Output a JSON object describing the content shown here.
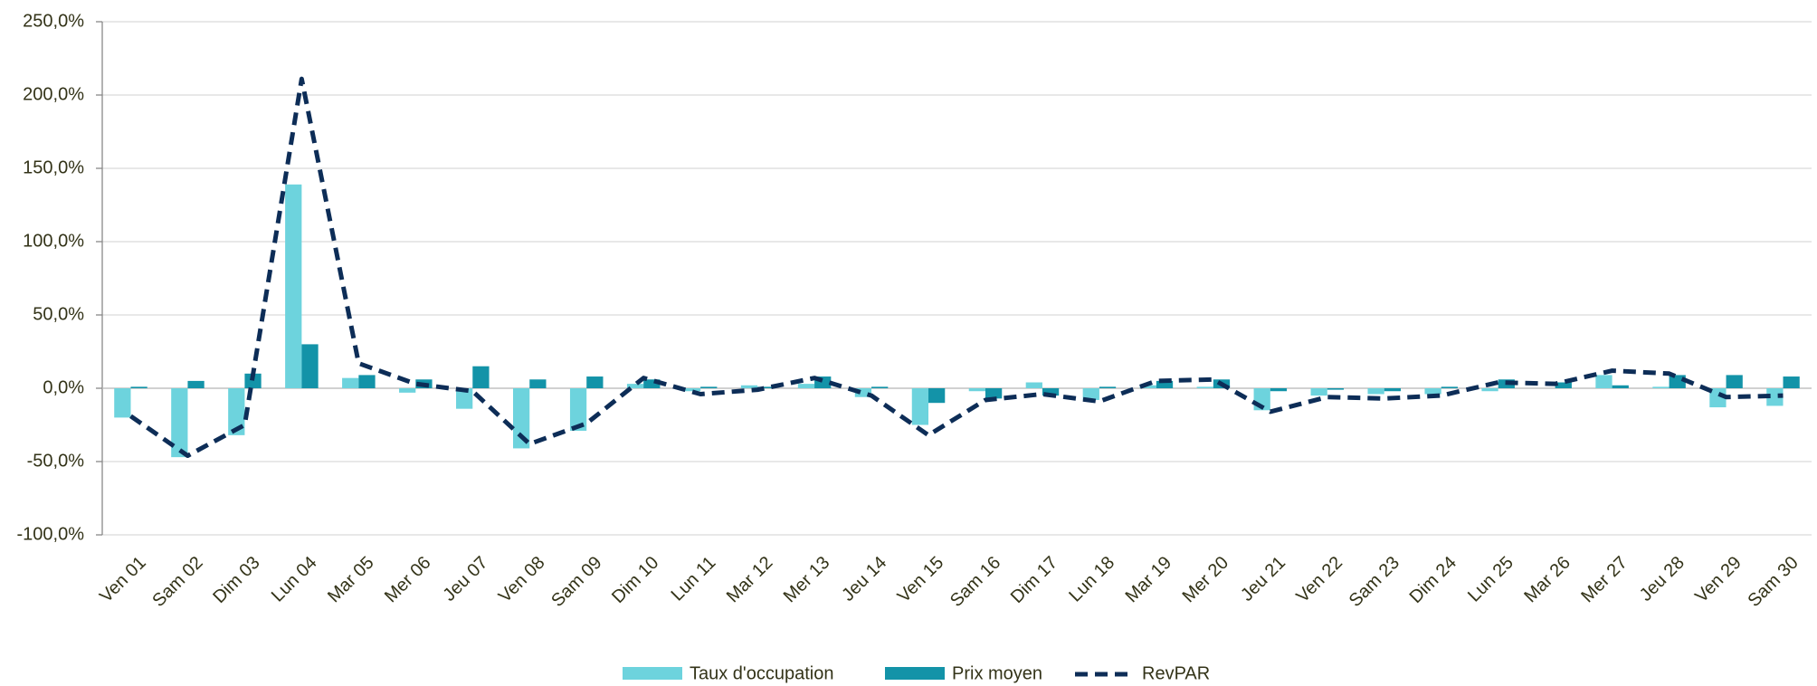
{
  "chart_data": {
    "type": "bar",
    "categories": [
      "Ven 01",
      "Sam 02",
      "Dim 03",
      "Lun 04",
      "Mar 05",
      "Mer 06",
      "Jeu 07",
      "Ven 08",
      "Sam 09",
      "Dim 10",
      "Lun 11",
      "Mar 12",
      "Mer 13",
      "Jeu 14",
      "Ven 15",
      "Sam 16",
      "Dim 17",
      "Lun 18",
      "Mar 19",
      "Mer 20",
      "Jeu 21",
      "Ven 22",
      "Sam 23",
      "Dim 24",
      "Lun 25",
      "Mar 26",
      "Mer 27",
      "Jeu 28",
      "Ven 29",
      "Sam 30"
    ],
    "series": [
      {
        "name": "Taux d'occupation",
        "type": "bar",
        "color": "#6dd3dd",
        "values": [
          -20,
          -47,
          -32,
          139,
          7,
          -3,
          -14,
          -41,
          -29,
          3,
          -2,
          2,
          3,
          -6,
          -25,
          -2,
          4,
          -8,
          2,
          1,
          -15,
          -5,
          -4,
          -4,
          -2,
          0,
          9,
          1,
          -13,
          -12
        ]
      },
      {
        "name": "Prix moyen",
        "type": "bar",
        "color": "#1393a8",
        "values": [
          1,
          5,
          10,
          30,
          9,
          6,
          15,
          6,
          8,
          6,
          1,
          1,
          8,
          1,
          -10,
          -7,
          -5,
          1,
          5,
          6,
          -2,
          -1,
          -2,
          1,
          6,
          4,
          2,
          9,
          9,
          8
        ]
      },
      {
        "name": "RevPAR",
        "type": "line",
        "dashed": true,
        "color": "#0d2d57",
        "values": [
          -19,
          -46,
          -25,
          211,
          17,
          3,
          -2,
          -38,
          -24,
          7,
          -4,
          -1,
          7,
          -5,
          -32,
          -8,
          -4,
          -9,
          5,
          6,
          -16,
          -6,
          -7,
          -5,
          4,
          3,
          12,
          10,
          -6,
          -5
        ]
      }
    ],
    "ylim": [
      -100,
      250
    ],
    "yticks": [
      {
        "value": -100,
        "label": "-100,0%"
      },
      {
        "value": -50,
        "label": "-50,0%"
      },
      {
        "value": 0,
        "label": "0,0%"
      },
      {
        "value": 50,
        "label": "50,0%"
      },
      {
        "value": 100,
        "label": "100,0%"
      },
      {
        "value": 150,
        "label": "150,0%"
      },
      {
        "value": 200,
        "label": "200,0%"
      },
      {
        "value": 250,
        "label": "250,0%"
      }
    ],
    "grid": true,
    "legend": "bottom"
  }
}
